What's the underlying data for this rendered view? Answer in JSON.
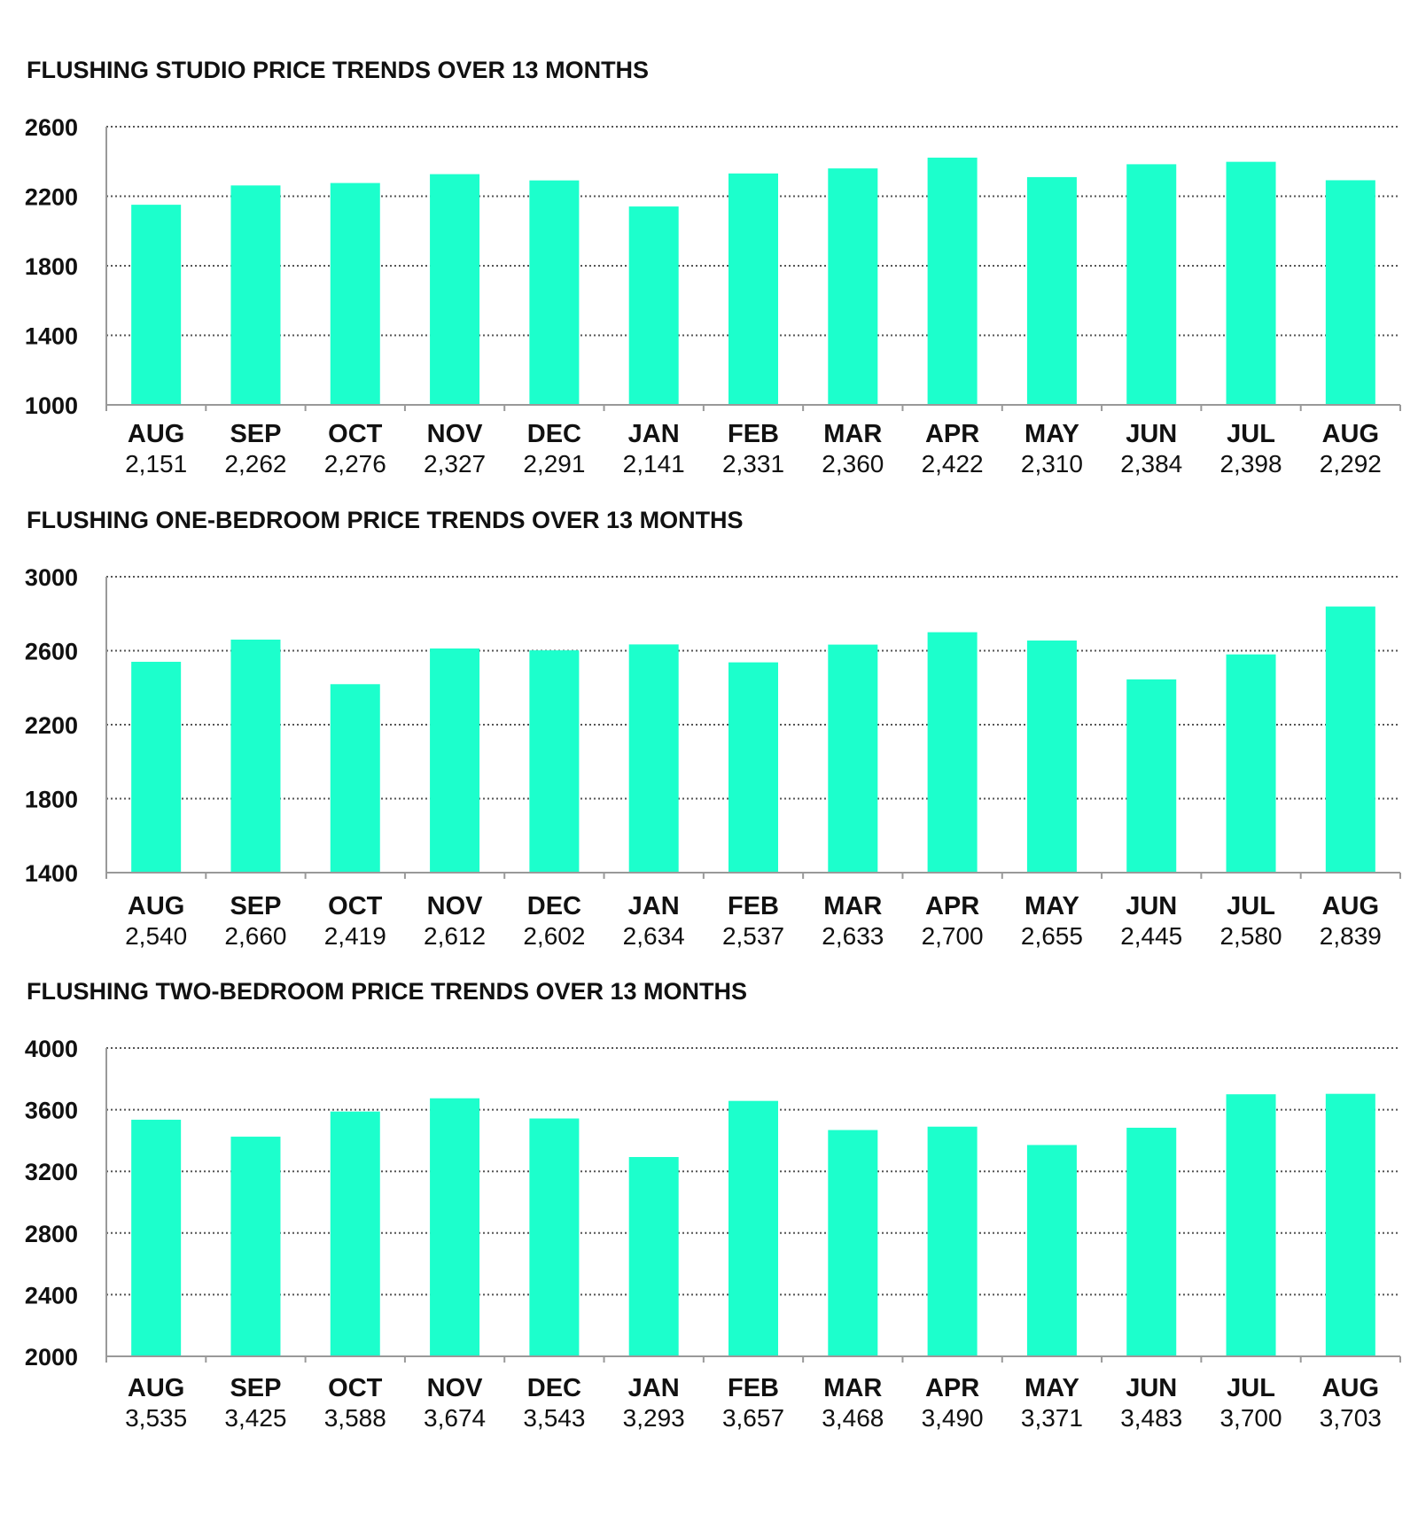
{
  "colors": {
    "bar": "#1CFFCC",
    "grid": "#555555",
    "axis": "#999999",
    "text": "#111111"
  },
  "chart_data": [
    {
      "type": "bar",
      "title": "FLUSHING STUDIO PRICE TRENDS OVER 13 MONTHS",
      "categories": [
        "AUG",
        "SEP",
        "OCT",
        "NOV",
        "DEC",
        "JAN",
        "FEB",
        "MAR",
        "APR",
        "MAY",
        "JUN",
        "JUL",
        "AUG"
      ],
      "value_labels": [
        "2,151",
        "2,262",
        "2,276",
        "2,327",
        "2,291",
        "2,141",
        "2,331",
        "2,360",
        "2,422",
        "2,310",
        "2,384",
        "2,398",
        "2,292"
      ],
      "values": [
        2151,
        2262,
        2276,
        2327,
        2291,
        2141,
        2331,
        2360,
        2422,
        2310,
        2384,
        2398,
        2292
      ],
      "yticks": [
        "1000",
        "1400",
        "1800",
        "2200",
        "2600"
      ],
      "ylim": [
        1000,
        2600
      ],
      "grid": true
    },
    {
      "type": "bar",
      "title": "FLUSHING ONE-BEDROOM PRICE TRENDS OVER 13 MONTHS",
      "categories": [
        "AUG",
        "SEP",
        "OCT",
        "NOV",
        "DEC",
        "JAN",
        "FEB",
        "MAR",
        "APR",
        "MAY",
        "JUN",
        "JUL",
        "AUG"
      ],
      "value_labels": [
        "2,540",
        "2,660",
        "2,419",
        "2,612",
        "2,602",
        "2,634",
        "2,537",
        "2,633",
        "2,700",
        "2,655",
        "2,445",
        "2,580",
        "2,839"
      ],
      "values": [
        2540,
        2660,
        2419,
        2612,
        2602,
        2634,
        2537,
        2633,
        2700,
        2655,
        2445,
        2580,
        2839
      ],
      "yticks": [
        "1400",
        "1800",
        "2200",
        "2600",
        "3000"
      ],
      "ylim": [
        1400,
        3000
      ],
      "grid": true
    },
    {
      "type": "bar",
      "title": "FLUSHING TWO-BEDROOM PRICE TRENDS OVER 13 MONTHS",
      "categories": [
        "AUG",
        "SEP",
        "OCT",
        "NOV",
        "DEC",
        "JAN",
        "FEB",
        "MAR",
        "APR",
        "MAY",
        "JUN",
        "JUL",
        "AUG"
      ],
      "value_labels": [
        "3,535",
        "3,425",
        "3,588",
        "3,674",
        "3,543",
        "3,293",
        "3,657",
        "3,468",
        "3,490",
        "3,371",
        "3,483",
        "3,700",
        "3,703"
      ],
      "values": [
        3535,
        3425,
        3588,
        3674,
        3543,
        3293,
        3657,
        3468,
        3490,
        3371,
        3483,
        3700,
        3703
      ],
      "yticks": [
        "2000",
        "2400",
        "2800",
        "3200",
        "3600",
        "4000"
      ],
      "ylim": [
        2000,
        4000
      ],
      "grid": true
    }
  ]
}
